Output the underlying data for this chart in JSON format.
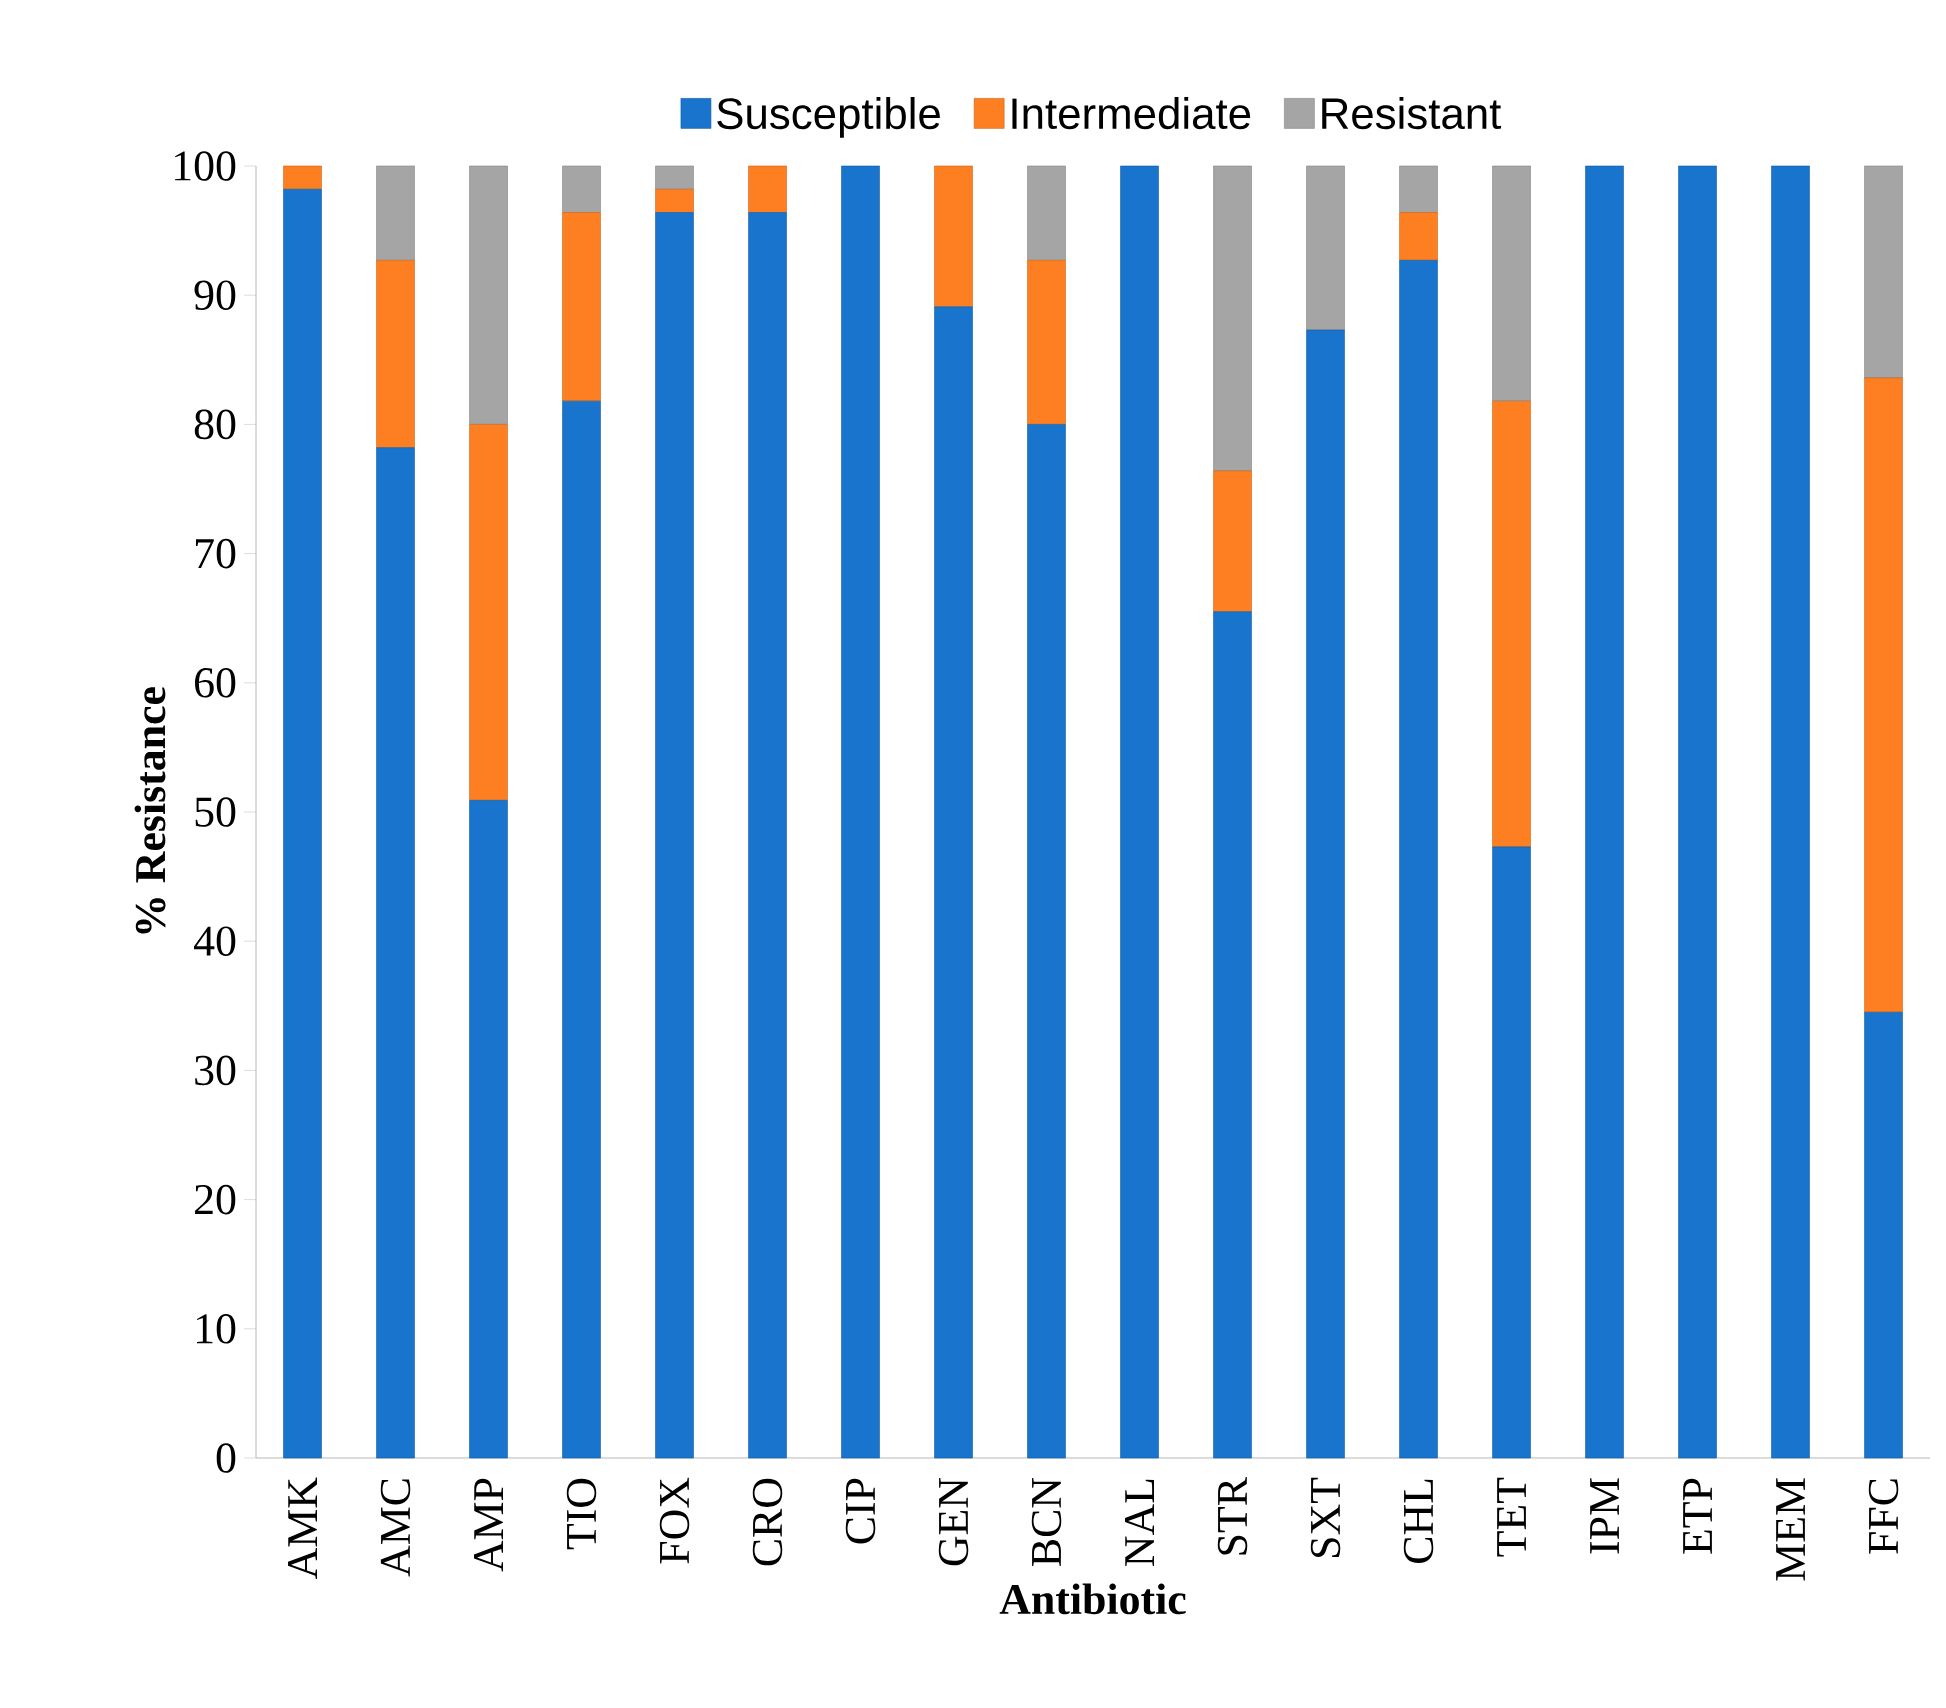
{
  "chart_data": {
    "type": "bar",
    "stacked": true,
    "xlabel": "Antibiotic",
    "ylabel": "% Resistance",
    "categories": [
      "AMK",
      "AMC",
      "AMP",
      "TIO",
      "FOX",
      "CRO",
      "CIP",
      "GEN",
      "BCN",
      "NAL",
      "STR",
      "SXT",
      "CHL",
      "TET",
      "IPM",
      "ETP",
      "MEM",
      "FFC"
    ],
    "series": [
      {
        "name": "Susceptible",
        "color": "#1874cd",
        "values": [
          98.2,
          78.2,
          50.9,
          81.8,
          96.4,
          96.4,
          100,
          89.1,
          80,
          100,
          65.5,
          87.3,
          92.7,
          47.3,
          100,
          100,
          100,
          34.5
        ]
      },
      {
        "name": "Intermediate",
        "color": "#fd7f22",
        "values": [
          1.8,
          14.5,
          29.1,
          14.6,
          1.8,
          3.6,
          0,
          10.9,
          12.7,
          0,
          10.9,
          0,
          3.7,
          34.5,
          0,
          0,
          0,
          49.1
        ]
      },
      {
        "name": "Resistant",
        "color": "#a5a5a5",
        "values": [
          0,
          7.3,
          20,
          3.6,
          1.8,
          0,
          0,
          0,
          7.3,
          0,
          23.6,
          12.7,
          3.6,
          18.2,
          0,
          0,
          0,
          16.4
        ]
      }
    ],
    "ylim": [
      0,
      100
    ],
    "yticks": [
      0,
      10,
      20,
      30,
      40,
      50,
      60,
      70,
      80,
      90,
      100
    ],
    "grid": false,
    "legend": "top"
  }
}
